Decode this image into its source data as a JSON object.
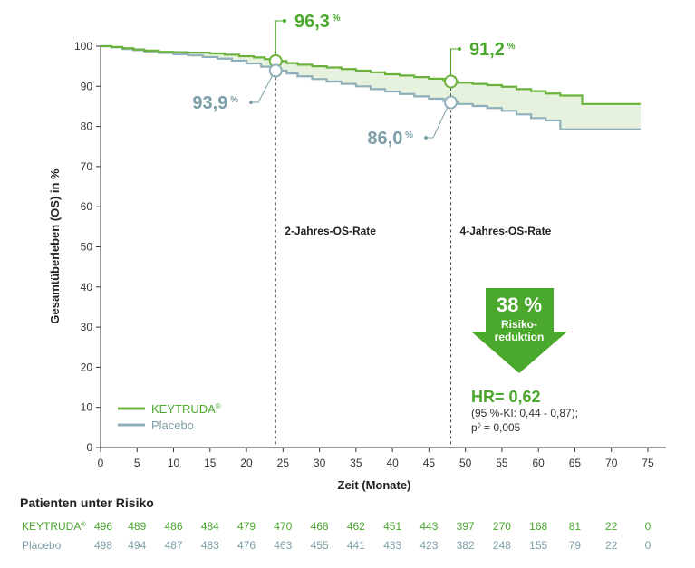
{
  "colors": {
    "keytruda": "#6ab23c",
    "placebo": "#8fb0ba",
    "keytruda_text": "#4aa82d",
    "placebo_text": "#7e9fa9",
    "band": "#e6f2dd",
    "arrow": "#4aa82d",
    "axis": "#333333"
  },
  "chart_data": {
    "type": "line",
    "xlabel": "Zeit (Monate)",
    "ylabel": "Gesamtüberleben (OS) in %",
    "xlim": [
      0,
      75
    ],
    "ylim": [
      0,
      100
    ],
    "xticks": [
      0,
      5,
      10,
      15,
      20,
      25,
      30,
      35,
      40,
      45,
      50,
      55,
      60,
      65,
      70,
      75
    ],
    "yticks": [
      0,
      10,
      20,
      30,
      40,
      50,
      60,
      70,
      80,
      90,
      100
    ],
    "series": [
      {
        "name": "KEYTRUDA",
        "superscript": "®",
        "x": [
          0,
          1.5,
          3,
          4.5,
          6,
          8,
          10,
          12,
          15,
          17,
          19,
          21,
          22.5,
          24,
          25.5,
          27,
          29,
          31,
          33,
          35,
          37,
          39,
          41,
          43,
          45,
          47,
          48,
          49,
          51,
          53,
          55,
          57,
          59,
          61,
          63,
          66,
          68,
          70,
          74
        ],
        "y": [
          100,
          99.8,
          99.5,
          99.2,
          98.9,
          98.6,
          98.5,
          98.4,
          98.2,
          97.9,
          97.5,
          97.2,
          96.8,
          96.3,
          95.8,
          95.4,
          95.0,
          94.7,
          94.3,
          93.9,
          93.5,
          93.0,
          92.7,
          92.3,
          91.9,
          91.5,
          91.2,
          90.9,
          90.6,
          90.3,
          89.9,
          89.3,
          88.8,
          88.2,
          87.7,
          85.6,
          85.6,
          85.6,
          85.6
        ]
      },
      {
        "name": "Placebo",
        "x": [
          0,
          1.5,
          3,
          4.5,
          6,
          8,
          10,
          12,
          14,
          16,
          18,
          20,
          22,
          24,
          25.5,
          27,
          29,
          31,
          33,
          35,
          37,
          39,
          41,
          43,
          45,
          47,
          48,
          49,
          51,
          53,
          55,
          57,
          59,
          61,
          63,
          66,
          68,
          70,
          74
        ],
        "y": [
          100,
          99.7,
          99.3,
          99.0,
          98.7,
          98.3,
          98.0,
          97.7,
          97.3,
          96.9,
          96.4,
          95.7,
          94.9,
          93.9,
          93.2,
          92.5,
          91.8,
          91.2,
          90.6,
          90.0,
          89.3,
          88.7,
          88.1,
          87.5,
          86.9,
          86.3,
          86.0,
          85.6,
          85.1,
          84.6,
          83.9,
          83.0,
          82.1,
          81.5,
          79.3,
          79.3,
          79.3,
          79.3,
          79.3
        ]
      }
    ],
    "annotations": {
      "vlines": [
        {
          "x": 24,
          "label": "2-Jahres-OS-Rate"
        },
        {
          "x": 48,
          "label": "4-Jahres-OS-Rate"
        }
      ],
      "points": [
        {
          "x": 24,
          "y": 96.3,
          "label": "96,3",
          "unit": "%",
          "series": "KEYTRUDA"
        },
        {
          "x": 24,
          "y": 93.9,
          "label": "93,9",
          "unit": "%",
          "series": "Placebo"
        },
        {
          "x": 48,
          "y": 91.2,
          "label": "91,2",
          "unit": "%",
          "series": "KEYTRUDA"
        },
        {
          "x": 48,
          "y": 86.0,
          "label": "86,0",
          "unit": "%",
          "series": "Placebo"
        }
      ]
    },
    "legend": "bottom-left"
  },
  "reduction": {
    "percent": "38 %",
    "line1": "Risiko-",
    "line2": "reduktion"
  },
  "hr": {
    "title": "HR= 0,62",
    "ci": "(95 %-KI: 0,44 - 0,87);",
    "p_prefix": "p",
    "p_superscript": "◊",
    "p_value": " = 0,005"
  },
  "risk_table": {
    "title": "Patienten unter Risiko",
    "rows": [
      {
        "label": "KEYTRUDA",
        "superscript": "®",
        "values": [
          "496",
          "489",
          "486",
          "484",
          "479",
          "470",
          "468",
          "462",
          "451",
          "443",
          "397",
          "270",
          "168",
          "81",
          "22",
          "0"
        ]
      },
      {
        "label": "Placebo",
        "values": [
          "498",
          "494",
          "487",
          "483",
          "476",
          "463",
          "455",
          "441",
          "433",
          "423",
          "382",
          "248",
          "155",
          "79",
          "22",
          "0"
        ]
      }
    ]
  }
}
